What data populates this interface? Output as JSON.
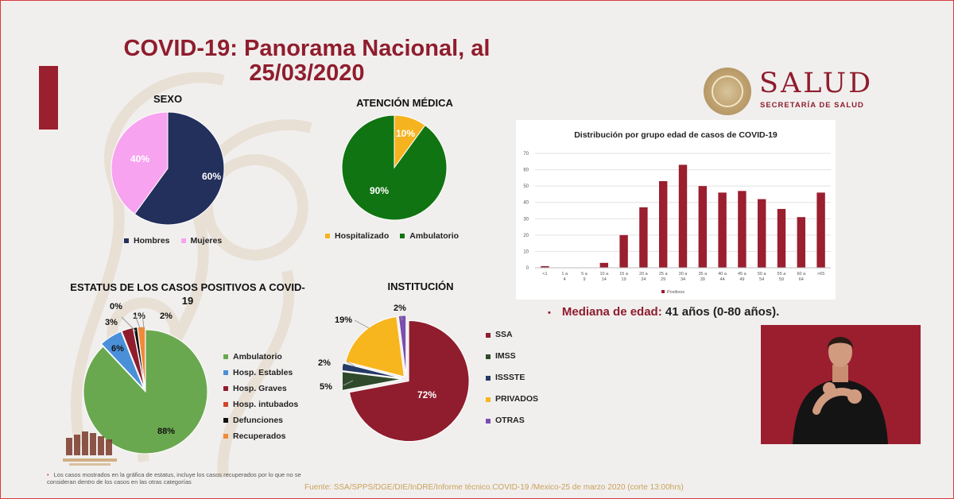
{
  "slide": {
    "title_line1": "COVID-19: Panorama Nacional, al",
    "title_line2": "25/03/2020",
    "logo_word": "SALUD",
    "logo_sub": "SECRETARÍA DE SALUD",
    "median_label": "Mediana de edad:",
    "median_value": " 41 años (0-80 años).",
    "footnote_bullet": "•",
    "footnote": "Los casos mostrados en la gráfica de estatus, incluye los casos recuperados por lo que no se consideran dentro de los casos en las otras categorías",
    "source": "Fuente: SSA/SPPS/DGE/DIE/InDRE/Informe técnico.COVID-19 /Mexico-25 de marzo 2020 (corte 13:00hrs)",
    "brand_red": "#8f1d2d"
  },
  "chart_data": [
    {
      "type": "pie",
      "title": "SEXO",
      "labels": [
        "Hombres",
        "Mujeres"
      ],
      "values": [
        60,
        40
      ],
      "display": [
        "60%",
        "40%"
      ],
      "colors": [
        "#23305c",
        "#f7a3f0"
      ]
    },
    {
      "type": "pie",
      "title": "ATENCIÓN MÉDICA",
      "labels": [
        "Hospitalizado",
        "Ambulatorio"
      ],
      "values": [
        10,
        90
      ],
      "display": [
        "10%",
        "90%"
      ],
      "colors": [
        "#f5b41f",
        "#117413"
      ]
    },
    {
      "type": "pie",
      "title": "ESTATUS DE LOS CASOS POSITIVOS A COVID-19",
      "labels": [
        "Ambulatorio",
        "Hosp. Estables",
        "Hosp. Graves",
        "Hosp. intubados",
        "Defunciones",
        "Recuperados"
      ],
      "values": [
        88,
        6,
        3,
        0,
        1,
        2
      ],
      "display": [
        "88%",
        "6%",
        "3%",
        "0%",
        "1%",
        "2%"
      ],
      "colors": [
        "#6aa84f",
        "#4a90d9",
        "#8f1d2d",
        "#d1452b",
        "#111111",
        "#f08a3a"
      ]
    },
    {
      "type": "pie",
      "title": "INSTITUCIÓN",
      "labels": [
        "SSA",
        "IMSS",
        "ISSSTE",
        "PRIVADOS",
        "OTRAS"
      ],
      "values": [
        72,
        5,
        2,
        19,
        2
      ],
      "display": [
        "72%",
        "5%",
        "2%",
        "19%",
        "2%"
      ],
      "colors": [
        "#8f1d2d",
        "#2f4a2a",
        "#263a66",
        "#f7b51e",
        "#7a4fb0"
      ]
    },
    {
      "type": "bar",
      "title": "Distribución por grupo edad de casos de COVID-19",
      "categories": [
        "<1",
        "1 a 4",
        "5 a 9",
        "10 a 14",
        "15 a 19",
        "20 a 24",
        "25 a 29",
        "30 a 34",
        "35 a 39",
        "40 a 44",
        "45 a 49",
        "50 a 54",
        "55 a 59",
        "60 a 64",
        ">65"
      ],
      "series": [
        {
          "name": "Positivos",
          "values": [
            1,
            0,
            0,
            3,
            20,
            37,
            53,
            63,
            50,
            46,
            47,
            42,
            36,
            31,
            46
          ]
        }
      ],
      "ylim": [
        0,
        70
      ],
      "yticks": [
        0,
        10,
        20,
        30,
        40,
        50,
        60,
        70
      ],
      "grid": true,
      "legend": "bottom",
      "color": "#9a1f2f"
    }
  ]
}
